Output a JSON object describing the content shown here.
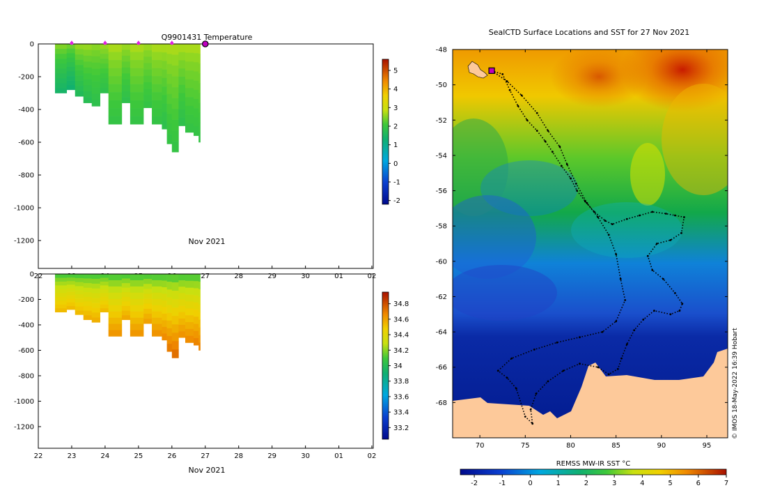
{
  "chart_data": [
    {
      "type": "heatmap",
      "panel": "temperature-section",
      "title": "Q9901431  Temperature",
      "xlabel": "Nov 2021",
      "ylabel": "",
      "x_ticks": [
        "22",
        "23",
        "24",
        "25",
        "26",
        "27",
        "28",
        "29",
        "30",
        "01",
        "02"
      ],
      "y_ticks": [
        0,
        -200,
        -400,
        -600,
        -800,
        -1000,
        -1200
      ],
      "ylim": [
        -1370,
        0
      ],
      "colorbar": {
        "ticks": [
          5,
          4,
          3,
          2,
          1,
          0,
          -1,
          -2
        ],
        "range": [
          -2.2,
          5.6
        ]
      },
      "profile_markers": [
        "23",
        "24",
        "25",
        "26"
      ],
      "current_marker": "27",
      "profiles": [
        {
          "day": 22.5,
          "max_depth": 300,
          "surface": 2.6,
          "deep": 1.4
        },
        {
          "day": 22.85,
          "max_depth": 280,
          "surface": 2.5,
          "deep": 1.3
        },
        {
          "day": 23.1,
          "max_depth": 320,
          "surface": 2.7,
          "deep": 1.6
        },
        {
          "day": 23.35,
          "max_depth": 360,
          "surface": 2.7,
          "deep": 1.7
        },
        {
          "day": 23.6,
          "max_depth": 380,
          "surface": 2.6,
          "deep": 1.8
        },
        {
          "day": 23.85,
          "max_depth": 300,
          "surface": 2.7,
          "deep": 1.8
        },
        {
          "day": 24.1,
          "max_depth": 490,
          "surface": 2.8,
          "deep": 1.9
        },
        {
          "day": 24.5,
          "max_depth": 360,
          "surface": 2.7,
          "deep": 1.8
        },
        {
          "day": 24.75,
          "max_depth": 490,
          "surface": 2.8,
          "deep": 1.9
        },
        {
          "day": 25.15,
          "max_depth": 390,
          "surface": 2.7,
          "deep": 1.9
        },
        {
          "day": 25.4,
          "max_depth": 490,
          "surface": 2.8,
          "deep": 1.9
        },
        {
          "day": 25.7,
          "max_depth": 520,
          "surface": 2.8,
          "deep": 1.8
        },
        {
          "day": 25.85,
          "max_depth": 610,
          "surface": 2.8,
          "deep": 1.9
        },
        {
          "day": 26.0,
          "max_depth": 660,
          "surface": 2.8,
          "deep": 1.9
        },
        {
          "day": 26.2,
          "max_depth": 500,
          "surface": 2.8,
          "deep": 1.8
        },
        {
          "day": 26.4,
          "max_depth": 540,
          "surface": 2.8,
          "deep": 1.9
        },
        {
          "day": 26.65,
          "max_depth": 560,
          "surface": 2.8,
          "deep": 1.9
        },
        {
          "day": 26.8,
          "max_depth": 600,
          "surface": 2.8,
          "deep": 1.9
        }
      ]
    },
    {
      "type": "heatmap",
      "panel": "salinity-section",
      "title": "",
      "xlabel": "Nov 2021",
      "x_ticks": [
        "22",
        "23",
        "24",
        "25",
        "26",
        "27",
        "28",
        "29",
        "30",
        "01",
        "02"
      ],
      "y_ticks": [
        0,
        -200,
        -400,
        -600,
        -800,
        -1000,
        -1200
      ],
      "ylim": [
        -1370,
        0
      ],
      "colorbar": {
        "ticks": [
          34.8,
          34.6,
          34.4,
          34.2,
          34,
          33.8,
          33.6,
          33.4,
          33.2
        ],
        "range": [
          33.05,
          34.95
        ]
      },
      "profiles": [
        {
          "day": 22.5,
          "max_depth": 300,
          "surface": 34.05,
          "deep": 34.55
        },
        {
          "day": 22.85,
          "max_depth": 280,
          "surface": 34.05,
          "deep": 34.55
        },
        {
          "day": 23.1,
          "max_depth": 320,
          "surface": 34.05,
          "deep": 34.55
        },
        {
          "day": 23.35,
          "max_depth": 360,
          "surface": 34.05,
          "deep": 34.58
        },
        {
          "day": 23.6,
          "max_depth": 380,
          "surface": 34.05,
          "deep": 34.58
        },
        {
          "day": 23.85,
          "max_depth": 300,
          "surface": 34.05,
          "deep": 34.55
        },
        {
          "day": 24.1,
          "max_depth": 490,
          "surface": 34.05,
          "deep": 34.65
        },
        {
          "day": 24.5,
          "max_depth": 360,
          "surface": 34.05,
          "deep": 34.6
        },
        {
          "day": 24.75,
          "max_depth": 490,
          "surface": 34.05,
          "deep": 34.65
        },
        {
          "day": 25.15,
          "max_depth": 390,
          "surface": 34.05,
          "deep": 34.62
        },
        {
          "day": 25.4,
          "max_depth": 490,
          "surface": 34.05,
          "deep": 34.66
        },
        {
          "day": 25.7,
          "max_depth": 520,
          "surface": 34.05,
          "deep": 34.68
        },
        {
          "day": 25.85,
          "max_depth": 610,
          "surface": 34.05,
          "deep": 34.72
        },
        {
          "day": 26.0,
          "max_depth": 660,
          "surface": 34.05,
          "deep": 34.75
        },
        {
          "day": 26.2,
          "max_depth": 500,
          "surface": 34.05,
          "deep": 34.66
        },
        {
          "day": 26.4,
          "max_depth": 540,
          "surface": 34.05,
          "deep": 34.68
        },
        {
          "day": 26.65,
          "max_depth": 560,
          "surface": 34.05,
          "deep": 34.7
        },
        {
          "day": 26.8,
          "max_depth": 600,
          "surface": 34.05,
          "deep": 34.7
        }
      ]
    },
    {
      "type": "heatmap",
      "panel": "sst-map",
      "title": "SealCTD Surface Locations and SST for 27 Nov 2021",
      "xlabel": "",
      "ylabel": "",
      "xlim": [
        67,
        97.3
      ],
      "ylim": [
        -70,
        -48
      ],
      "x_ticks": [
        70,
        75,
        80,
        85,
        90,
        95
      ],
      "y_ticks": [
        -48,
        -50,
        -52,
        -54,
        -56,
        -58,
        -60,
        -62,
        -64,
        -66,
        -68
      ],
      "colorbar_label": "REMSS MW-IR SST °C",
      "colorbar_ticks": [
        -2,
        -1,
        0,
        1,
        2,
        3,
        4,
        5,
        6,
        7
      ],
      "colorbar_range": [
        -2.5,
        7
      ],
      "credit": "© IMOS 18-May-2022 16:39 Hobart",
      "current_position": {
        "lon": 71.3,
        "lat": -49.2
      },
      "track": [
        [
          71.3,
          -49.2
        ],
        [
          72.5,
          -49.4
        ],
        [
          73.3,
          -50.3
        ],
        [
          74.2,
          -51.2
        ],
        [
          75.2,
          -52.0
        ],
        [
          76.3,
          -52.6
        ],
        [
          77.2,
          -53.2
        ],
        [
          78.0,
          -53.8
        ],
        [
          79.0,
          -54.6
        ],
        [
          80.0,
          -55.3
        ],
        [
          80.7,
          -56.0
        ],
        [
          81.6,
          -56.6
        ],
        [
          82.6,
          -57.2
        ],
        [
          83.8,
          -57.7
        ],
        [
          84.6,
          -57.9
        ],
        [
          86.2,
          -57.6
        ],
        [
          87.6,
          -57.4
        ],
        [
          89.0,
          -57.2
        ],
        [
          90.5,
          -57.3
        ],
        [
          91.5,
          -57.4
        ],
        [
          92.5,
          -57.5
        ],
        [
          92.2,
          -58.4
        ],
        [
          91.0,
          -58.8
        ],
        [
          89.5,
          -59.0
        ],
        [
          88.5,
          -59.7
        ],
        [
          89.0,
          -60.5
        ],
        [
          90.2,
          -61.0
        ],
        [
          91.5,
          -61.8
        ],
        [
          92.3,
          -62.4
        ],
        [
          92.0,
          -62.8
        ],
        [
          91.0,
          -63.0
        ],
        [
          89.2,
          -62.8
        ],
        [
          88.0,
          -63.3
        ],
        [
          87.0,
          -63.9
        ],
        [
          86.2,
          -64.7
        ],
        [
          85.6,
          -65.5
        ],
        [
          85.2,
          -66.1
        ],
        [
          84.2,
          -66.4
        ],
        [
          83.0,
          -66.0
        ],
        [
          81.0,
          -65.8
        ],
        [
          79.2,
          -66.2
        ],
        [
          77.5,
          -66.8
        ],
        [
          76.2,
          -67.5
        ],
        [
          75.6,
          -68.4
        ],
        [
          75.8,
          -69.2
        ],
        [
          75.0,
          -68.8
        ],
        [
          74.0,
          -67.2
        ],
        [
          73.0,
          -66.6
        ],
        [
          72.0,
          -66.2
        ],
        [
          73.5,
          -65.5
        ],
        [
          76.0,
          -65.0
        ],
        [
          78.5,
          -64.6
        ],
        [
          81.0,
          -64.3
        ],
        [
          83.5,
          -64.0
        ],
        [
          85.0,
          -63.4
        ],
        [
          86.0,
          -62.2
        ],
        [
          85.5,
          -61.0
        ],
        [
          85.0,
          -59.6
        ],
        [
          84.2,
          -58.5
        ],
        [
          83.0,
          -57.5
        ],
        [
          81.8,
          -56.7
        ],
        [
          80.6,
          -55.6
        ],
        [
          79.6,
          -54.5
        ],
        [
          78.8,
          -53.5
        ],
        [
          77.5,
          -52.6
        ],
        [
          76.3,
          -51.6
        ],
        [
          74.6,
          -50.6
        ],
        [
          73.0,
          -49.8
        ],
        [
          71.3,
          -49.2
        ]
      ]
    }
  ]
}
